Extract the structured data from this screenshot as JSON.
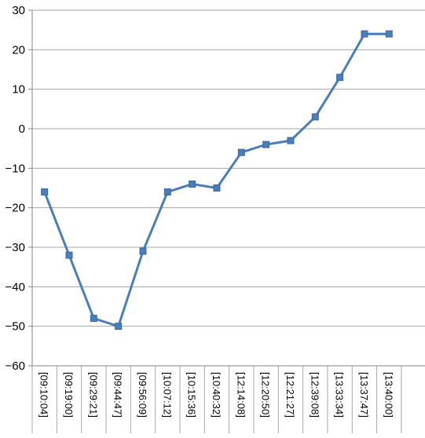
{
  "chart_data": {
    "type": "line",
    "title": "",
    "xlabel": "",
    "ylabel": "",
    "ylim": [
      -60,
      30
    ],
    "ytick_step": 10,
    "grid": true,
    "legend": "none",
    "categories": [
      "[09:10:04]",
      "[09:19:00]",
      "[09:29:21]",
      "[09:44:47]",
      "[09:56:09]",
      "[10:07:12]",
      "[10:15:36]",
      "[10:40:32]",
      "[12:14:08]",
      "[12:20:50]",
      "[12:21:27]",
      "[12:39:08]",
      "[13:33:34]",
      "[13:37:47]",
      "[13:40:00]"
    ],
    "series": [
      {
        "values": [
          -16,
          -32,
          -48,
          -50,
          -31,
          -16,
          -14,
          -15,
          -6,
          -4,
          -3,
          3,
          13,
          24,
          24
        ]
      }
    ],
    "colors": {
      "line": "#4a7ebb",
      "marker": "#4a7ebb",
      "grid": "#a6a6a6",
      "axis": "#868686"
    }
  }
}
